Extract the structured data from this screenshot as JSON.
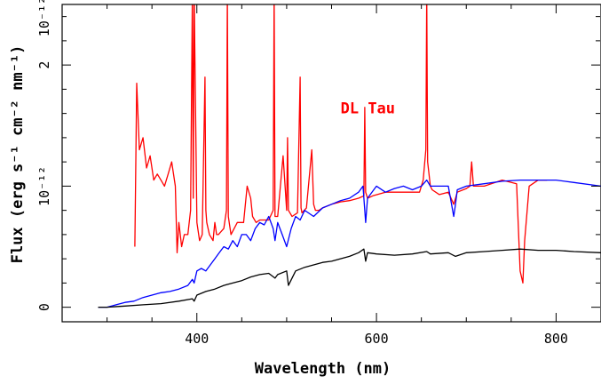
{
  "chart_data": {
    "type": "line",
    "xlabel": "Wavelength (nm)",
    "ylabel": "Flux (erg s⁻¹ cm⁻² nm⁻¹)",
    "xlim": [
      250,
      850
    ],
    "ylim": [
      -0.12,
      2.5
    ],
    "x_ticks": [
      {
        "value": 400,
        "label": "400"
      },
      {
        "value": 600,
        "label": "600"
      },
      {
        "value": 800,
        "label": "800"
      }
    ],
    "y_ticks": [
      {
        "value": 0,
        "label": "0"
      },
      {
        "value": 1,
        "label": "10⁻¹²"
      },
      {
        "value": 2,
        "label": "2"
      },
      {
        "value": 2.4,
        "label": "10⁻¹²"
      }
    ],
    "annotations": [
      {
        "text": "DL Tau",
        "x": 560,
        "y": 1.6,
        "color": "#ff0000"
      }
    ],
    "series": [
      {
        "color": "#ff0000",
        "x": [
          331,
          333,
          336,
          340,
          344,
          348,
          352,
          356,
          360,
          364,
          368,
          372,
          376,
          378,
          380,
          383,
          386,
          390,
          393,
          395,
          396,
          397,
          400,
          403,
          406,
          409,
          410,
          411,
          414,
          418,
          420,
          422,
          424,
          430,
          433,
          434,
          435,
          438,
          445,
          452,
          456,
          460,
          462,
          466,
          470,
          480,
          485,
          486,
          487,
          490,
          496,
          500,
          501,
          502,
          506,
          512,
          515,
          516,
          517,
          522,
          528,
          530,
          532,
          536,
          540,
          550,
          560,
          570,
          580,
          586,
          587,
          588,
          590,
          596,
          610,
          630,
          648,
          652,
          655,
          656,
          657,
          660,
          662,
          670,
          680,
          686,
          688,
          690,
          700,
          704,
          706,
          708,
          720,
          740,
          756,
          760,
          763,
          765,
          770,
          780,
          790
        ],
        "y": [
          0.5,
          1.85,
          1.3,
          1.4,
          1.15,
          1.25,
          1.05,
          1.1,
          1.05,
          1.0,
          1.1,
          1.2,
          1.0,
          0.45,
          0.7,
          0.5,
          0.6,
          0.6,
          0.8,
          2.6,
          0.9,
          2.6,
          0.7,
          0.55,
          0.6,
          1.9,
          0.8,
          0.7,
          0.6,
          0.55,
          0.7,
          0.6,
          0.6,
          0.65,
          0.8,
          2.6,
          0.75,
          0.6,
          0.7,
          0.7,
          1.0,
          0.9,
          0.75,
          0.7,
          0.72,
          0.72,
          0.8,
          2.6,
          0.75,
          0.75,
          1.25,
          0.8,
          1.4,
          0.8,
          0.75,
          0.78,
          1.9,
          0.82,
          0.78,
          0.82,
          1.3,
          0.85,
          0.8,
          0.8,
          0.82,
          0.85,
          0.87,
          0.88,
          0.9,
          0.92,
          1.65,
          0.95,
          0.9,
          0.92,
          0.95,
          0.95,
          0.95,
          1.05,
          1.3,
          2.6,
          1.2,
          1.0,
          0.97,
          0.93,
          0.95,
          0.85,
          0.9,
          0.95,
          0.98,
          1.0,
          1.2,
          1.0,
          1.0,
          1.05,
          1.02,
          0.3,
          0.2,
          0.55,
          1.0,
          1.05,
          1.05
        ]
      },
      {
        "color": "#0000ff",
        "x": [
          290,
          300,
          310,
          320,
          330,
          340,
          350,
          360,
          370,
          380,
          390,
          395,
          397,
          400,
          405,
          410,
          415,
          420,
          425,
          430,
          435,
          440,
          445,
          450,
          455,
          460,
          465,
          470,
          475,
          480,
          485,
          487,
          490,
          495,
          500,
          505,
          510,
          515,
          520,
          530,
          540,
          550,
          560,
          570,
          580,
          585,
          588,
          590,
          600,
          610,
          620,
          630,
          640,
          650,
          656,
          660,
          670,
          680,
          686,
          688,
          690,
          700,
          720,
          740,
          760,
          780,
          800,
          820,
          850
        ],
        "y": [
          0.0,
          0.0,
          0.02,
          0.04,
          0.05,
          0.08,
          0.1,
          0.12,
          0.13,
          0.15,
          0.18,
          0.23,
          0.2,
          0.3,
          0.32,
          0.3,
          0.35,
          0.4,
          0.45,
          0.5,
          0.48,
          0.55,
          0.5,
          0.6,
          0.6,
          0.55,
          0.65,
          0.7,
          0.68,
          0.75,
          0.65,
          0.55,
          0.7,
          0.6,
          0.5,
          0.65,
          0.75,
          0.72,
          0.8,
          0.75,
          0.82,
          0.85,
          0.88,
          0.9,
          0.95,
          1.0,
          0.7,
          0.9,
          1.0,
          0.95,
          0.98,
          1.0,
          0.97,
          1.0,
          1.05,
          1.0,
          1.0,
          1.0,
          0.75,
          0.85,
          0.97,
          1.0,
          1.02,
          1.04,
          1.05,
          1.05,
          1.05,
          1.03,
          1.0
        ]
      },
      {
        "color": "#000000",
        "x": [
          290,
          300,
          320,
          340,
          360,
          380,
          395,
          397,
          400,
          410,
          420,
          430,
          440,
          450,
          460,
          470,
          480,
          487,
          490,
          500,
          502,
          510,
          520,
          530,
          540,
          550,
          560,
          570,
          580,
          586,
          588,
          590,
          600,
          620,
          640,
          656,
          660,
          680,
          688,
          700,
          720,
          740,
          760,
          780,
          800,
          820,
          850
        ],
        "y": [
          0.0,
          0.0,
          0.01,
          0.02,
          0.03,
          0.05,
          0.07,
          0.05,
          0.1,
          0.13,
          0.15,
          0.18,
          0.2,
          0.22,
          0.25,
          0.27,
          0.28,
          0.24,
          0.27,
          0.3,
          0.18,
          0.3,
          0.33,
          0.35,
          0.37,
          0.38,
          0.4,
          0.42,
          0.45,
          0.48,
          0.38,
          0.45,
          0.44,
          0.43,
          0.44,
          0.46,
          0.44,
          0.45,
          0.42,
          0.45,
          0.46,
          0.47,
          0.48,
          0.47,
          0.47,
          0.46,
          0.45
        ]
      }
    ]
  }
}
